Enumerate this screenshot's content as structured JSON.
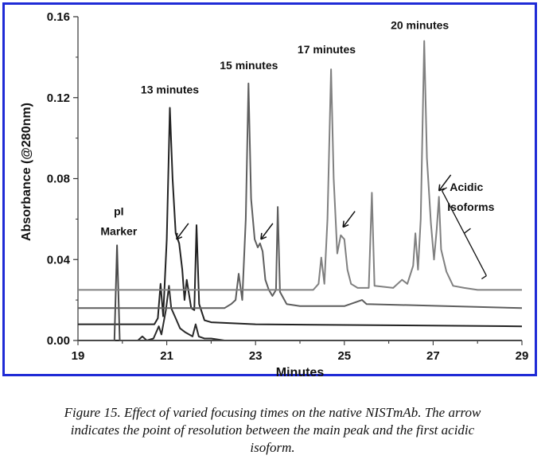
{
  "chart_data": {
    "type": "line",
    "ylabel": "Absorbance (@280nm)",
    "xlabel": "Minutes",
    "xlim": [
      19,
      29
    ],
    "ylim": [
      0,
      0.16
    ],
    "x_ticks": [
      "19",
      "21",
      "23",
      "25",
      "27",
      "29"
    ],
    "y_ticks": [
      "0.00",
      "0.04",
      "0.08",
      "0.12",
      "0.16"
    ],
    "grid": false,
    "series": [
      {
        "color": "#2b2b2b",
        "baseline": 0.0,
        "points": [
          [
            19,
            0.0
          ],
          [
            20.35,
            0.0
          ],
          [
            20.45,
            0.002
          ],
          [
            20.55,
            0.0
          ],
          [
            20.7,
            0.001
          ],
          [
            20.82,
            0.007
          ],
          [
            20.88,
            0.003
          ],
          [
            20.98,
            0.015
          ],
          [
            21.05,
            0.027
          ],
          [
            21.1,
            0.016
          ],
          [
            21.2,
            0.011
          ],
          [
            21.3,
            0.006
          ],
          [
            21.42,
            0.004
          ],
          [
            21.58,
            0.002
          ],
          [
            21.65,
            0.008
          ],
          [
            21.72,
            0.002
          ],
          [
            21.85,
            0.001
          ],
          [
            22.0,
            0.001
          ],
          [
            22.3,
            0.0
          ],
          [
            29,
            0.0
          ]
        ]
      },
      {
        "color": "#222222",
        "baseline": 0.008,
        "points": [
          [
            19,
            0.008
          ],
          [
            20.72,
            0.008
          ],
          [
            20.8,
            0.011
          ],
          [
            20.86,
            0.028
          ],
          [
            20.92,
            0.012
          ],
          [
            21.0,
            0.05
          ],
          [
            21.07,
            0.115
          ],
          [
            21.13,
            0.08
          ],
          [
            21.2,
            0.053
          ],
          [
            21.28,
            0.048
          ],
          [
            21.35,
            0.035
          ],
          [
            21.4,
            0.02
          ],
          [
            21.45,
            0.03
          ],
          [
            21.55,
            0.016
          ],
          [
            21.62,
            0.015
          ],
          [
            21.67,
            0.057
          ],
          [
            21.73,
            0.018
          ],
          [
            21.85,
            0.01
          ],
          [
            22.0,
            0.009
          ],
          [
            23.0,
            0.008
          ],
          [
            29,
            0.007
          ]
        ]
      },
      {
        "color": "#4a4a4a",
        "baseline": 0.0,
        "points": [
          [
            19,
            0.0
          ],
          [
            19.82,
            0.0
          ],
          [
            19.88,
            0.047
          ],
          [
            19.94,
            0.0
          ],
          [
            20.1,
            0.0
          ],
          [
            29,
            0.0
          ]
        ]
      },
      {
        "color": "#5e5e5e",
        "baseline": 0.016,
        "points": [
          [
            19,
            0.016
          ],
          [
            22.3,
            0.016
          ],
          [
            22.45,
            0.018
          ],
          [
            22.55,
            0.02
          ],
          [
            22.62,
            0.033
          ],
          [
            22.7,
            0.02
          ],
          [
            22.78,
            0.06
          ],
          [
            22.84,
            0.127
          ],
          [
            22.9,
            0.07
          ],
          [
            22.98,
            0.05
          ],
          [
            23.05,
            0.046
          ],
          [
            23.1,
            0.048
          ],
          [
            23.16,
            0.044
          ],
          [
            23.22,
            0.03
          ],
          [
            23.3,
            0.025
          ],
          [
            23.38,
            0.022
          ],
          [
            23.46,
            0.025
          ],
          [
            23.5,
            0.066
          ],
          [
            23.55,
            0.024
          ],
          [
            23.7,
            0.018
          ],
          [
            24.0,
            0.017
          ],
          [
            25.0,
            0.017
          ],
          [
            25.4,
            0.02
          ],
          [
            25.5,
            0.018
          ],
          [
            29,
            0.016
          ]
        ]
      },
      {
        "color": "#808080",
        "baseline": 0.025,
        "points": [
          [
            19,
            0.025
          ],
          [
            24.3,
            0.025
          ],
          [
            24.42,
            0.028
          ],
          [
            24.48,
            0.041
          ],
          [
            24.55,
            0.028
          ],
          [
            24.62,
            0.06
          ],
          [
            24.7,
            0.134
          ],
          [
            24.76,
            0.08
          ],
          [
            24.84,
            0.043
          ],
          [
            24.92,
            0.052
          ],
          [
            25.0,
            0.05
          ],
          [
            25.07,
            0.035
          ],
          [
            25.15,
            0.028
          ],
          [
            25.3,
            0.026
          ],
          [
            25.55,
            0.026
          ],
          [
            25.62,
            0.073
          ],
          [
            25.68,
            0.027
          ],
          [
            26.1,
            0.026
          ],
          [
            26.3,
            0.03
          ],
          [
            26.42,
            0.028
          ],
          [
            26.55,
            0.037
          ],
          [
            26.6,
            0.053
          ],
          [
            26.66,
            0.035
          ],
          [
            26.72,
            0.06
          ],
          [
            26.8,
            0.148
          ],
          [
            26.86,
            0.09
          ],
          [
            26.95,
            0.058
          ],
          [
            27.02,
            0.04
          ],
          [
            27.08,
            0.055
          ],
          [
            27.13,
            0.071
          ],
          [
            27.18,
            0.045
          ],
          [
            27.3,
            0.034
          ],
          [
            27.45,
            0.027
          ],
          [
            27.7,
            0.026
          ],
          [
            28.0,
            0.025
          ],
          [
            29,
            0.025
          ]
        ]
      }
    ],
    "annotations": [
      {
        "text": "pI",
        "x": 19.92,
        "y": 0.062
      },
      {
        "text": "Marker",
        "x": 19.92,
        "y": 0.052
      },
      {
        "text": "13 minutes",
        "x": 21.07,
        "y": 0.122
      },
      {
        "text": "15 minutes",
        "x": 22.85,
        "y": 0.134
      },
      {
        "text": "17 minutes",
        "x": 24.6,
        "y": 0.142
      },
      {
        "text": "20 minutes",
        "x": 26.7,
        "y": 0.154
      },
      {
        "text": "Acidic",
        "x": 27.75,
        "y": 0.074
      },
      {
        "text": "Isoforms",
        "x": 27.85,
        "y": 0.064
      }
    ],
    "arrows": [
      {
        "x_tip": 21.22,
        "y_tip": 0.05
      },
      {
        "x_tip": 23.12,
        "y_tip": 0.05
      },
      {
        "x_tip": 24.97,
        "y_tip": 0.056
      },
      {
        "x_tip": 27.13,
        "y_tip": 0.074
      }
    ],
    "bracket": {
      "x1": 27.2,
      "y1": 0.074,
      "x2": 28.2,
      "y2": 0.032
    }
  },
  "caption": {
    "line1": "Figure 15. Effect of varied focusing times on the native NISTmAb. The arrow",
    "line2": "indicates the point of resolution between the main peak and the first acidic",
    "line3": "isoform."
  }
}
